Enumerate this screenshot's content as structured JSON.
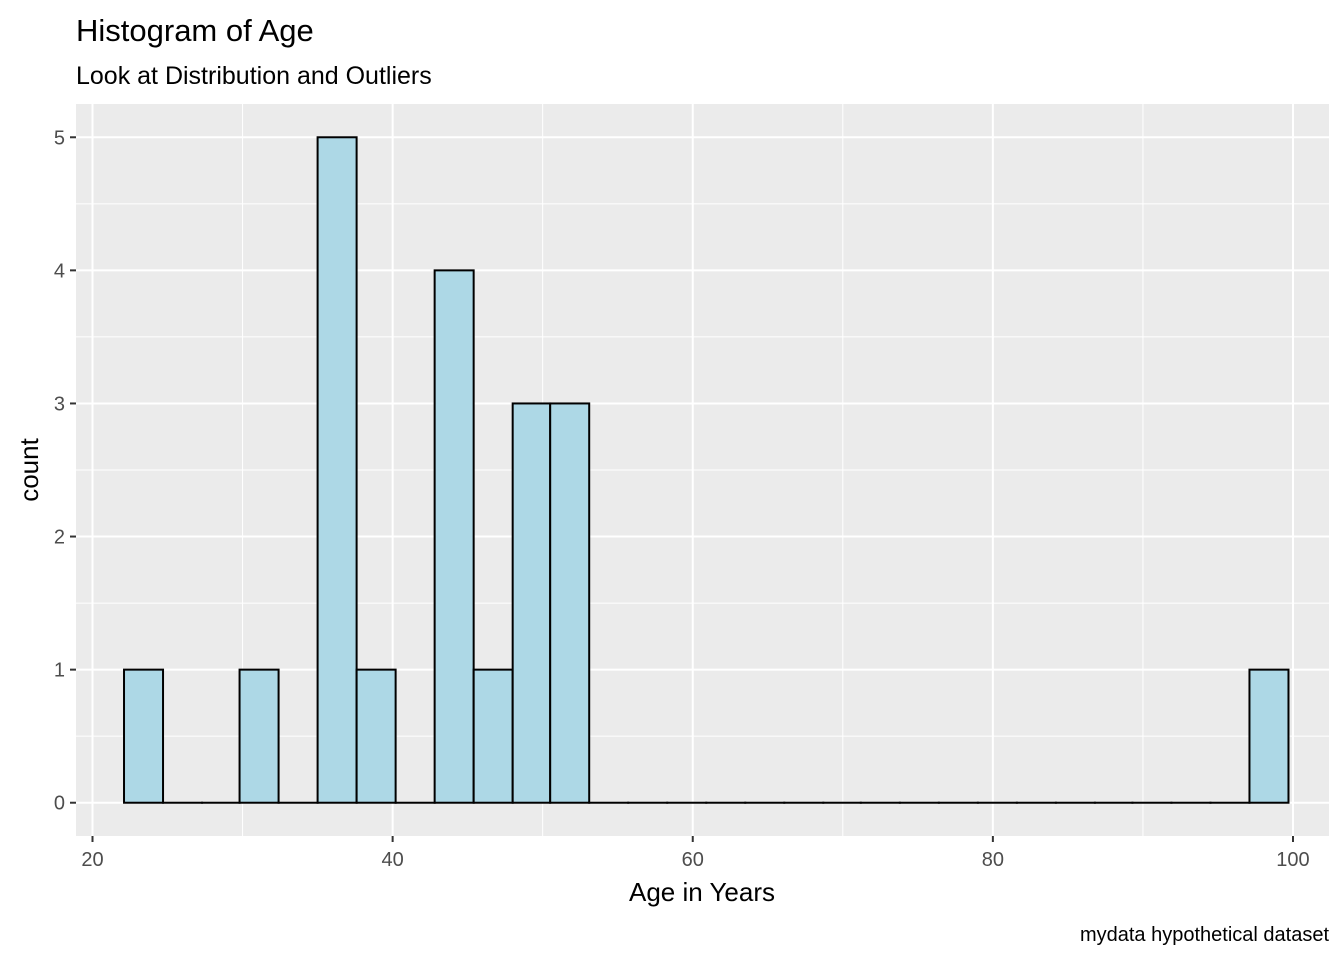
{
  "chart_data": {
    "type": "bar",
    "title": "Histogram of Age",
    "subtitle": "Look at Distribution and Outliers",
    "xlabel": "Age in Years",
    "ylabel": "count",
    "caption": "mydata hypothetical dataset",
    "xlim": [
      18.9,
      102.4
    ],
    "ylim": [
      -0.25,
      5.25
    ],
    "x_ticks": [
      20,
      40,
      60,
      80,
      100
    ],
    "y_ticks": [
      0,
      1,
      2,
      3,
      4,
      5
    ],
    "grid": true,
    "bin_width": 2.586,
    "bins": [
      {
        "start": 22.1,
        "end": 24.7,
        "count": 1
      },
      {
        "start": 24.7,
        "end": 27.3,
        "count": 0
      },
      {
        "start": 27.3,
        "end": 29.8,
        "count": 0
      },
      {
        "start": 29.8,
        "end": 32.4,
        "count": 1
      },
      {
        "start": 32.4,
        "end": 35.0,
        "count": 0
      },
      {
        "start": 35.0,
        "end": 37.6,
        "count": 5
      },
      {
        "start": 37.6,
        "end": 40.2,
        "count": 1
      },
      {
        "start": 40.2,
        "end": 42.8,
        "count": 0
      },
      {
        "start": 42.8,
        "end": 45.4,
        "count": 4
      },
      {
        "start": 45.4,
        "end": 48.0,
        "count": 1
      },
      {
        "start": 48.0,
        "end": 50.5,
        "count": 3
      },
      {
        "start": 50.5,
        "end": 53.1,
        "count": 3
      },
      {
        "start": 53.1,
        "end": 55.7,
        "count": 0
      },
      {
        "start": 55.7,
        "end": 58.3,
        "count": 0
      },
      {
        "start": 58.3,
        "end": 60.9,
        "count": 0
      },
      {
        "start": 60.9,
        "end": 63.5,
        "count": 0
      },
      {
        "start": 63.5,
        "end": 66.1,
        "count": 0
      },
      {
        "start": 66.1,
        "end": 68.7,
        "count": 0
      },
      {
        "start": 68.7,
        "end": 71.2,
        "count": 0
      },
      {
        "start": 71.2,
        "end": 73.8,
        "count": 0
      },
      {
        "start": 73.8,
        "end": 76.4,
        "count": 0
      },
      {
        "start": 76.4,
        "end": 79.0,
        "count": 0
      },
      {
        "start": 79.0,
        "end": 81.6,
        "count": 0
      },
      {
        "start": 81.6,
        "end": 84.2,
        "count": 0
      },
      {
        "start": 84.2,
        "end": 86.8,
        "count": 0
      },
      {
        "start": 86.8,
        "end": 89.3,
        "count": 0
      },
      {
        "start": 89.3,
        "end": 91.9,
        "count": 0
      },
      {
        "start": 91.9,
        "end": 94.5,
        "count": 0
      },
      {
        "start": 94.5,
        "end": 97.1,
        "count": 0
      },
      {
        "start": 97.1,
        "end": 99.7,
        "count": 1
      }
    ],
    "colors": {
      "panel_bg": "#ebebeb",
      "grid": "#ffffff",
      "bar_fill": "#add8e6",
      "bar_stroke": "#000000"
    }
  }
}
